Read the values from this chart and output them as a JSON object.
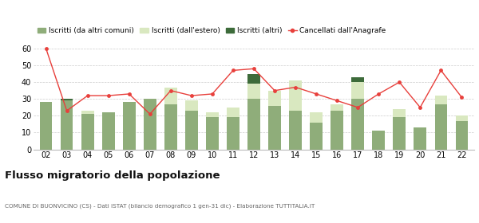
{
  "years": [
    "02",
    "03",
    "04",
    "05",
    "06",
    "07",
    "08",
    "09",
    "10",
    "11",
    "12",
    "13",
    "14",
    "15",
    "16",
    "17",
    "18",
    "19",
    "20",
    "21",
    "22"
  ],
  "iscritti_altri_comuni": [
    28,
    29,
    21,
    22,
    28,
    30,
    27,
    23,
    19,
    19,
    30,
    26,
    23,
    16,
    23,
    30,
    11,
    19,
    13,
    27,
    17
  ],
  "iscritti_estero": [
    0,
    0,
    2,
    0,
    0,
    0,
    10,
    6,
    3,
    6,
    9,
    9,
    18,
    6,
    4,
    10,
    0,
    5,
    0,
    5,
    3
  ],
  "iscritti_altri": [
    0,
    1,
    0,
    0,
    0,
    0,
    0,
    0,
    0,
    0,
    6,
    0,
    0,
    0,
    0,
    3,
    0,
    0,
    0,
    0,
    0
  ],
  "cancellati": [
    60,
    23,
    32,
    32,
    33,
    21,
    35,
    32,
    33,
    47,
    48,
    35,
    37,
    33,
    29,
    25,
    33,
    40,
    25,
    47,
    31
  ],
  "color_altri_comuni": "#8fad7a",
  "color_estero": "#d9e8c0",
  "color_altri": "#3d6b3a",
  "color_cancellati": "#e8403c",
  "title": "Flusso migratorio della popolazione",
  "subtitle": "COMUNE DI BUONVICINO (CS) - Dati ISTAT (bilancio demografico 1 gen-31 dic) - Elaborazione TUTTITALIA.IT",
  "legend_labels": [
    "Iscritti (da altri comuni)",
    "Iscritti (dall'estero)",
    "Iscritti (altri)",
    "Cancellati dall'Anagrafe"
  ],
  "ylim": [
    0,
    65
  ],
  "yticks": [
    0,
    10,
    20,
    30,
    40,
    50,
    60
  ],
  "background_color": "#ffffff",
  "grid_color": "#cccccc"
}
